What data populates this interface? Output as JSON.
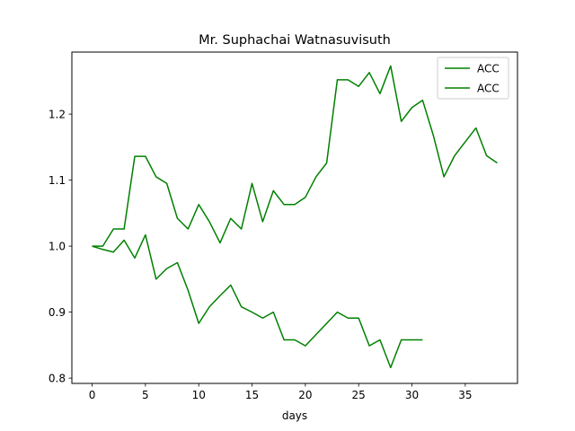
{
  "chart_data": {
    "type": "line",
    "title": "Mr. Suphachai Watnasuvisuth",
    "xlabel": "days",
    "ylabel": "",
    "xlim": [
      -1.9,
      39.9
    ],
    "ylim": [
      0.792,
      1.294
    ],
    "xticks": [
      0,
      5,
      10,
      15,
      20,
      25,
      30,
      35
    ],
    "yticks": [
      0.8,
      0.9,
      1.0,
      1.1,
      1.2
    ],
    "grid": false,
    "legend_position": "top-right",
    "series": [
      {
        "name": "ACC",
        "color": "#008000",
        "x": [
          0,
          1,
          2,
          3,
          4,
          5,
          6,
          7,
          8,
          9,
          10,
          11,
          12,
          13,
          14,
          15,
          16,
          17,
          18,
          19,
          20,
          21,
          22,
          23,
          24,
          25,
          26,
          27,
          28,
          29,
          30,
          31,
          32,
          33,
          34,
          35,
          36,
          37,
          38
        ],
        "y": [
          1.0,
          1.0,
          1.026,
          1.026,
          1.136,
          1.136,
          1.105,
          1.095,
          1.042,
          1.026,
          1.063,
          1.037,
          1.005,
          1.042,
          1.026,
          1.095,
          1.037,
          1.084,
          1.063,
          1.063,
          1.074,
          1.105,
          1.126,
          1.252,
          1.252,
          1.242,
          1.263,
          1.231,
          1.273,
          1.189,
          1.21,
          1.221,
          1.168,
          1.105,
          1.137,
          1.158,
          1.179,
          1.137,
          1.126
        ]
      },
      {
        "name": "ACC",
        "color": "#008000",
        "x": [
          0,
          1,
          2,
          3,
          4,
          5,
          6,
          7,
          8,
          9,
          10,
          11,
          12,
          13,
          14,
          15,
          16,
          17,
          18,
          19,
          20,
          21,
          22,
          23,
          24,
          25,
          26,
          27,
          28,
          29,
          30,
          31
        ],
        "y": [
          1.0,
          0.995,
          0.991,
          1.009,
          0.982,
          1.017,
          0.95,
          0.966,
          0.975,
          0.933,
          0.883,
          0.908,
          0.925,
          0.941,
          0.908,
          0.9,
          0.891,
          0.9,
          0.858,
          0.858,
          0.849,
          0.866,
          0.883,
          0.9,
          0.891,
          0.891,
          0.849,
          0.858,
          0.816,
          0.858,
          0.858,
          0.858
        ]
      }
    ]
  }
}
